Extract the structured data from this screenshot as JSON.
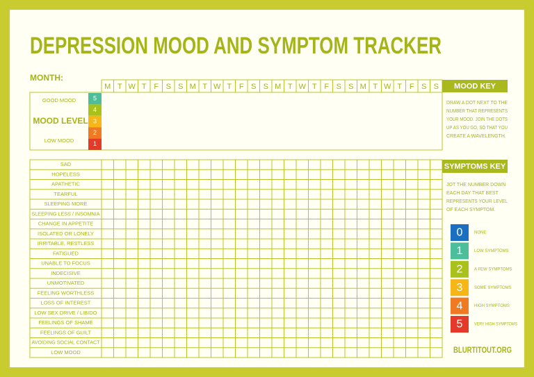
{
  "header": {
    "title": "DEPRESSION MOOD AND SYMPTOM TRACKER",
    "month_label": "MONTH:"
  },
  "days": [
    "M",
    "T",
    "W",
    "T",
    "F",
    "S",
    "S",
    "M",
    "T",
    "W",
    "T",
    "F",
    "S",
    "S",
    "M",
    "T",
    "W",
    "T",
    "F",
    "S",
    "S",
    "M",
    "T",
    "W",
    "T",
    "F",
    "S",
    "S"
  ],
  "mood": {
    "good_label": "GOOD MOOD",
    "level_label": "MOOD LEVEL",
    "low_label": "LOW MOOD",
    "levels": [
      5,
      4,
      3,
      2,
      1
    ]
  },
  "symptoms": [
    "SAD",
    "HOPELESS",
    "APATHETIC",
    "TEARFUL",
    "SLEEPING MORE",
    "SLEEPING LESS / INSOMNIA",
    "CHANGE IN APPETITE",
    "ISOLATED OR LONELY",
    "IRRITABLE, RESTLESS",
    "FATIGUED",
    "UNABLE TO FOCUS",
    "INDECISIVE",
    "UNMOTIVATED",
    "FEELING WORTHLESS",
    "LOSS OF INTEREST",
    "LOW SEX DRIVE / LIBIDO",
    "FEELINGS OF SHAME",
    "FEELINGS OF GUILT",
    "AVOIDING SOCIAL CONTACT",
    "LOW MOOD"
  ],
  "mood_key": {
    "title": "MOOD KEY",
    "lines": [
      "DRAW A DOT NEXT TO THE",
      "NUMBER THAT REPRESENTS",
      "YOUR MOOD. JOIN THE DOTS",
      "UP AS YOU GO, SO THAT YOU",
      "CREATE A WAVELENGTH."
    ]
  },
  "symptoms_key": {
    "title": "SYMPTOMS KEY",
    "lines": [
      "JOT THE NUMBER DOWN",
      "EACH DAY THAT BEST",
      "REPRESENTS YOUR LEVEL",
      "OF EACH SYMPTOM."
    ],
    "items": [
      {
        "number": 0,
        "label": "NONE"
      },
      {
        "number": 1,
        "label": "LOW SYMPTOMS"
      },
      {
        "number": 2,
        "label": "A FEW SYMPTOMS"
      },
      {
        "number": 3,
        "label": "SOME SYMPTOMS"
      },
      {
        "number": 4,
        "label": "HIGH SYMPTOMS"
      },
      {
        "number": 5,
        "label": "VERY HIGH SYMPTOMS"
      }
    ]
  },
  "footer": "BLURTITOUT.ORG"
}
